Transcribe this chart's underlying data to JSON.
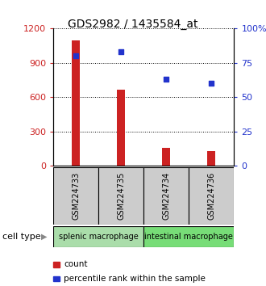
{
  "title": "GDS2982 / 1435584_at",
  "samples": [
    "GSM224733",
    "GSM224735",
    "GSM224734",
    "GSM224736"
  ],
  "bar_values": [
    1095,
    665,
    155,
    130
  ],
  "percentile_values": [
    80,
    83,
    63,
    60
  ],
  "left_ylim": [
    0,
    1200
  ],
  "right_ylim": [
    0,
    100
  ],
  "left_yticks": [
    0,
    300,
    600,
    900,
    1200
  ],
  "right_yticks": [
    0,
    25,
    50,
    75,
    100
  ],
  "right_yticklabels": [
    "0",
    "25",
    "50",
    "75",
    "100%"
  ],
  "bar_color": "#cc2222",
  "scatter_color": "#2233cc",
  "groups": [
    {
      "label": "splenic macrophage",
      "samples": [
        0,
        1
      ],
      "color": "#aaddaa"
    },
    {
      "label": "intestinal macrophage",
      "samples": [
        2,
        3
      ],
      "color": "#77dd77"
    }
  ],
  "group_box_color": "#cccccc",
  "cell_type_label": "cell type",
  "legend_count_label": "count",
  "legend_pct_label": "percentile rank within the sample",
  "axis_label_color_left": "#cc2222",
  "axis_label_color_right": "#2233cc",
  "background_color": "#ffffff"
}
